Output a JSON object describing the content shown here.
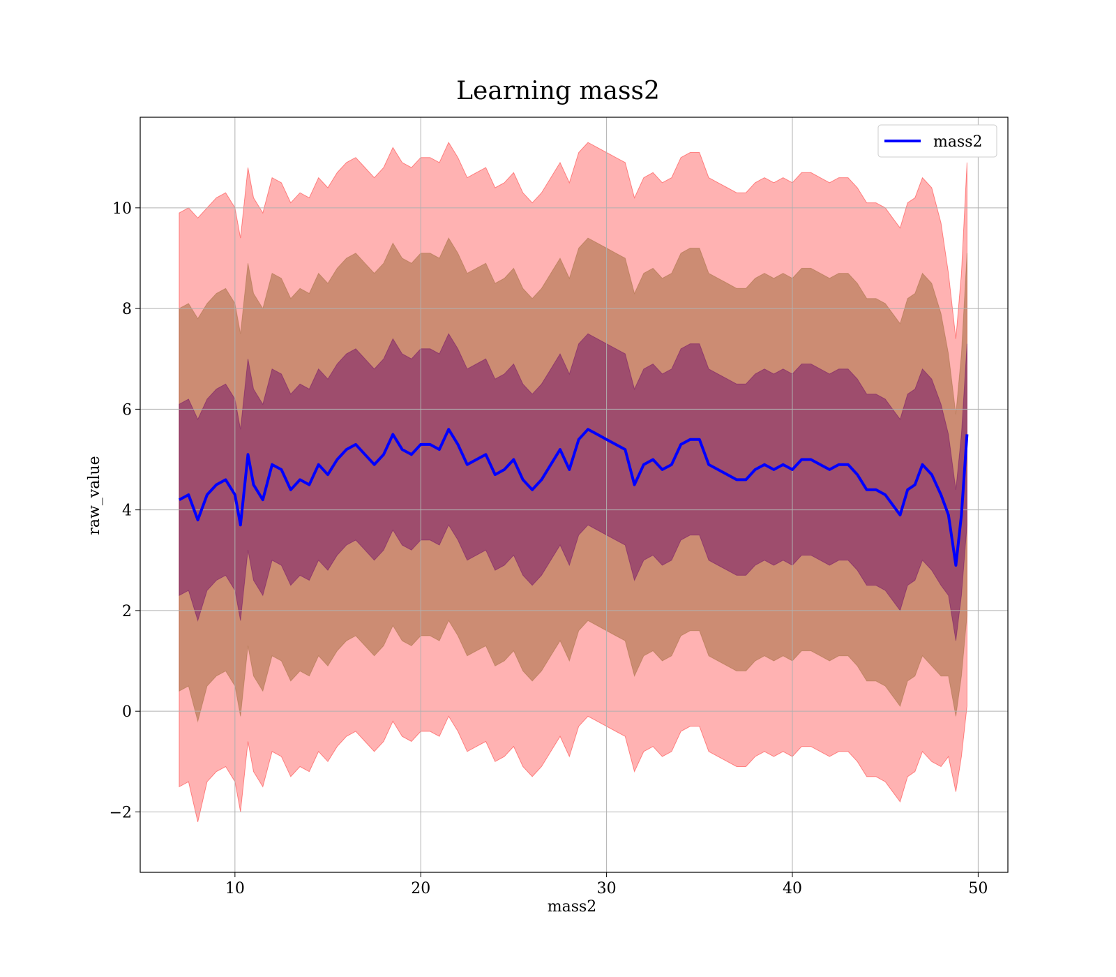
{
  "chart_data": {
    "type": "line",
    "title": "Learning mass2",
    "xlabel": "mass2",
    "ylabel": "raw_value",
    "xlim": [
      4.9,
      51.6
    ],
    "ylim": [
      -3.2,
      11.8
    ],
    "xticks": [
      10,
      20,
      30,
      40,
      50
    ],
    "yticks": [
      -2,
      0,
      2,
      4,
      6,
      8,
      10
    ],
    "ytick_labels": [
      "−2",
      "0",
      "2",
      "4",
      "6",
      "8",
      "10"
    ],
    "grid": true,
    "legend": {
      "position": "top-right",
      "entries": [
        "mass2"
      ]
    },
    "colors": {
      "line": "#0000ff",
      "band_3sigma": "#ff0000",
      "band_2sigma": "#996633",
      "band_1sigma": "#660066",
      "grid": "#b0b0b0"
    },
    "series": [
      {
        "name": "mass2",
        "x": [
          7.0,
          7.5,
          8.0,
          8.5,
          9.0,
          9.5,
          10.0,
          10.3,
          10.7,
          11.0,
          11.5,
          12.0,
          12.5,
          13.0,
          13.5,
          14.0,
          14.5,
          15.0,
          15.5,
          16.0,
          16.5,
          17.0,
          17.5,
          18.0,
          18.5,
          19.0,
          19.5,
          20.0,
          20.5,
          21.0,
          21.5,
          22.0,
          22.5,
          23.0,
          23.5,
          24.0,
          24.5,
          25.0,
          25.5,
          26.0,
          26.5,
          27.0,
          27.5,
          28.0,
          28.5,
          29.0,
          29.5,
          30.0,
          30.5,
          31.0,
          31.5,
          32.0,
          32.5,
          33.0,
          33.5,
          34.0,
          34.5,
          35.0,
          35.5,
          36.0,
          36.5,
          37.0,
          37.5,
          38.0,
          38.5,
          39.0,
          39.5,
          40.0,
          40.5,
          41.0,
          41.5,
          42.0,
          42.5,
          43.0,
          43.5,
          44.0,
          44.5,
          45.0,
          45.4,
          45.8,
          46.2,
          46.6,
          47.0,
          47.5,
          48.0,
          48.4,
          48.8,
          49.1,
          49.4
        ],
        "y": [
          4.2,
          4.3,
          3.8,
          4.3,
          4.5,
          4.6,
          4.3,
          3.7,
          5.1,
          4.5,
          4.2,
          4.9,
          4.8,
          4.4,
          4.6,
          4.5,
          4.9,
          4.7,
          5.0,
          5.2,
          5.3,
          5.1,
          4.9,
          5.1,
          5.5,
          5.2,
          5.1,
          5.3,
          5.3,
          5.2,
          5.6,
          5.3,
          4.9,
          5.0,
          5.1,
          4.7,
          4.8,
          5.0,
          4.6,
          4.4,
          4.6,
          4.9,
          5.2,
          4.8,
          5.4,
          5.6,
          5.5,
          5.4,
          5.3,
          5.2,
          4.5,
          4.9,
          5.0,
          4.8,
          4.9,
          5.3,
          5.4,
          5.4,
          4.9,
          4.8,
          4.7,
          4.6,
          4.6,
          4.8,
          4.9,
          4.8,
          4.9,
          4.8,
          5.0,
          5.0,
          4.9,
          4.8,
          4.9,
          4.9,
          4.7,
          4.4,
          4.4,
          4.3,
          4.1,
          3.9,
          4.4,
          4.5,
          4.9,
          4.7,
          4.3,
          3.9,
          2.9,
          3.9,
          5.5
        ],
        "sigma": [
          1.9,
          1.9,
          2.0,
          1.9,
          1.9,
          1.9,
          1.9,
          1.9,
          1.9,
          1.9,
          1.9,
          1.9,
          1.9,
          1.9,
          1.9,
          1.9,
          1.9,
          1.9,
          1.9,
          1.9,
          1.9,
          1.9,
          1.9,
          1.9,
          1.9,
          1.9,
          1.9,
          1.9,
          1.9,
          1.9,
          1.9,
          1.9,
          1.9,
          1.9,
          1.9,
          1.9,
          1.9,
          1.9,
          1.9,
          1.9,
          1.9,
          1.9,
          1.9,
          1.9,
          1.9,
          1.9,
          1.9,
          1.9,
          1.9,
          1.9,
          1.9,
          1.9,
          1.9,
          1.9,
          1.9,
          1.9,
          1.9,
          1.9,
          1.9,
          1.9,
          1.9,
          1.9,
          1.9,
          1.9,
          1.9,
          1.9,
          1.9,
          1.9,
          1.9,
          1.9,
          1.9,
          1.9,
          1.9,
          1.9,
          1.9,
          1.9,
          1.9,
          1.9,
          1.9,
          1.9,
          1.9,
          1.9,
          1.9,
          1.9,
          1.8,
          1.6,
          1.5,
          1.6,
          1.8
        ]
      }
    ]
  }
}
